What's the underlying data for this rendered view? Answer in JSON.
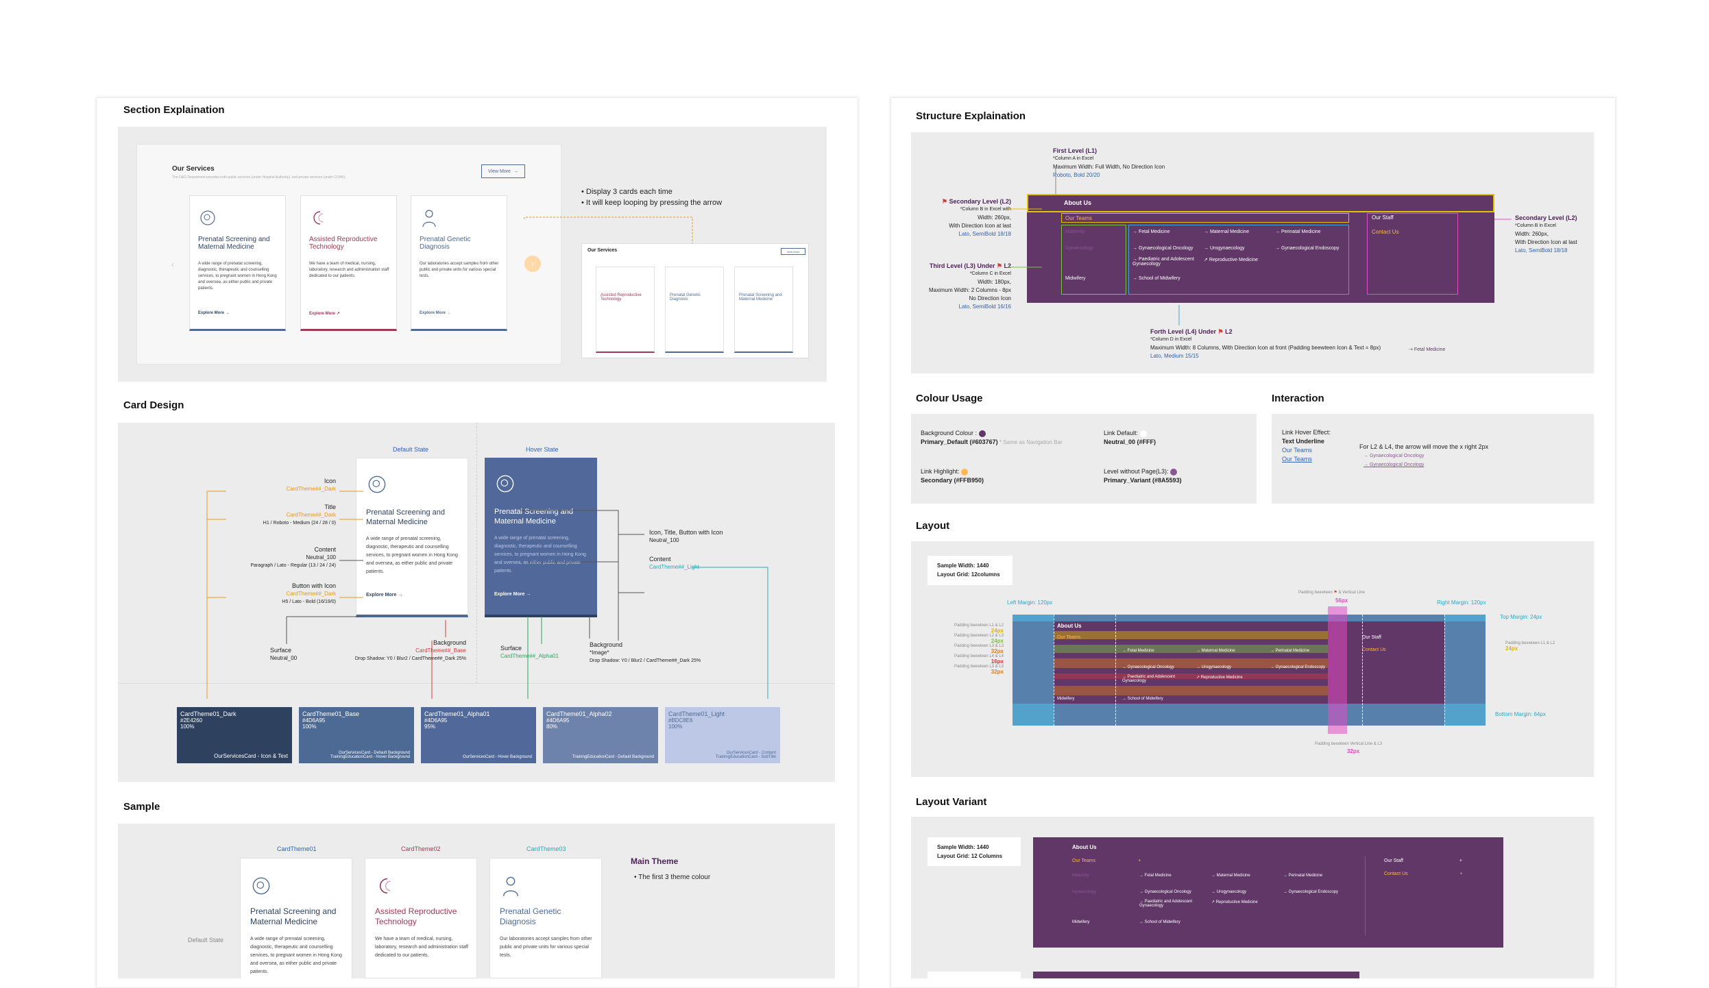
{
  "colors": {
    "primary": "#603767",
    "secondary": "#FFB950",
    "primary_variant": "#8A5593",
    "theme01_dark": "#2E4260",
    "theme01_base": "#4D6A95",
    "theme02": "#9B3A55",
    "theme03": "#4D6A95",
    "light": "#BDC8E6"
  },
  "icons": {
    "service1": "fetus-icon",
    "service2": "reproductive-icon",
    "service3": "doctor-icon",
    "arrow": "arrow-right-icon",
    "external": "external-link-icon",
    "chevron_left": "chevron-left-icon",
    "chevron_right": "chevron-right-icon",
    "flag": "flag-icon"
  },
  "left": {
    "section_explaination": {
      "title": "Section Explaination",
      "our_services": "Our Services",
      "our_services_sub": "The O&G Department provides both public services (under Hospital Authority), and private services (under CUHK).",
      "view_more": "View More",
      "notes": [
        "Display 3 cards each time",
        "It will keep looping by pressing the arrow"
      ]
    },
    "cards": [
      {
        "title": "Prenatal Screening and Maternal Medicine",
        "body": "A wide range of prenatal screening, diagnostic, therapeutic and counselling services, to pregnant women in Hong Kong and oversea, as either public and private patients.",
        "cta": "Explore More"
      },
      {
        "title": "Assisted Reproductive Technology",
        "body": "We have a team of medical, nursing, laboratory, research and administration staff dedicated to our patients.",
        "cta": "Explore More"
      },
      {
        "title": "Prenatal Genetic Diagnosis",
        "body": "Our laboratories accept samples from other public and private units for various special tests.",
        "cta": "Explore More"
      }
    ],
    "card_design": {
      "title": "Card Design",
      "default_state": "Default State",
      "hover_state": "Hover State",
      "icon_label": "Icon",
      "icon_token": "CardTheme##_Dark",
      "title_label": "Title",
      "title_token": "CardTheme##_Dark",
      "title_spec": "H1 / Roboto - Medium (24 / 28 / 0)",
      "content_label": "Content",
      "content_token": "Neutral_100",
      "content_spec": "Paragraph / Lato - Regular (13 / 24 / 24)",
      "button_label": "Button with Icon",
      "button_token": "CardTheme##_Dark",
      "button_spec": "H5 / Lato - Bold (16/19/0)",
      "surface_label": "Surface",
      "surface_token": "Neutral_00",
      "background_label": "Background",
      "background_token": "CardTheme##_Base",
      "background_spec": "Drop Shadow: Y0 / Blur2 / CardTheme##_Dark 25%",
      "hover_icon_label": "Icon, Title, Button with Icon",
      "hover_icon_token": "Neutral_100",
      "hover_content_label": "Content",
      "hover_content_token": "CardTheme##_Light",
      "hover_surface_label": "Surface",
      "hover_surface_token": "CardTheme##_Alpha01",
      "hover_background_label": "Background",
      "hover_background_token": "*Image*",
      "hover_background_spec": "Drop Shadow: Y0 / Blur2 / CardTheme##_Dark 25%",
      "swatches": [
        {
          "name": "CardTheme01_Dark",
          "hex": "#2E4260",
          "pct": "100%",
          "use": "OurServicesCard - Icon & Text",
          "color": "#2E4260"
        },
        {
          "name": "CardTheme01_Base",
          "hex": "#4D6A95",
          "pct": "100%",
          "use": "OurServicesCard - Default Background\nTrainingEducationCard - Hover Background",
          "color": "#4D6A95"
        },
        {
          "name": "CardTheme01_Alpha01",
          "hex": "#4D6A95",
          "pct": "95%",
          "use": "OurServicesCard - Hover Background",
          "color": "#51699a"
        },
        {
          "name": "CardTheme01_Alpha02",
          "hex": "#4D6A95",
          "pct": "80%",
          "use": "TrainingEducationCard - Default Background",
          "color": "#6d83ab"
        },
        {
          "name": "CardTheme01_Light",
          "hex": "#BDC8E6",
          "pct": "100%",
          "use": "OurServicesCard - Content\nTrainingEducationCard - SubTitle",
          "color": "#BDC8E6"
        }
      ]
    },
    "sample": {
      "title": "Sample",
      "themes": [
        "CardTheme01",
        "CardTheme02",
        "CardTheme03"
      ],
      "default_state": "Default State",
      "main_theme": "Main Theme",
      "main_theme_note": "The first 3 theme colour"
    }
  },
  "right": {
    "structure": {
      "title": "Structure Explaination",
      "l1_title": "First Level (L1)",
      "l1_note1": "*Column A in Excel",
      "l1_note2": "Maximum Width: Full Width, No Direction Icon",
      "l1_font": "Roboto, Bold 20/20",
      "l2_title": "Secondary Level (L2)",
      "l2_note1": "*Column B in Excel with",
      "l2_note2": "Width: 260px,",
      "l2_note3": "With Direction Icon at last",
      "l2_font": "Lato, SemiBold 18/18",
      "l3_title": "Third Level (L3) Under",
      "l3_suffix": "L2",
      "l3_note1": "*Column C in Excel",
      "l3_note2": "Width: 180px,",
      "l3_note3": "Maximum Width: 2 Columns - 8px",
      "l3_note4": "No Direction Icon",
      "l3_font": "Lato, SemiBold 16/16",
      "l4_title": "Forth Level (L4) Under",
      "l4_suffix": "L2",
      "l4_note1": "*Column D in Excel",
      "l4_note2": "Maximum Width: 8 Columns, With Direction Icon at front (Padding beewteen Icon & Text = 8px)",
      "l4_font": "Lato, Medium 15/15",
      "l4_sample": "Fetal Medicine",
      "r2_title": "Secondary Level (L2)",
      "r2_note1": "*Column B in Excel",
      "r2_note2": "Width: 260px,",
      "r2_note3": "With Direction Icon at last",
      "r2_font": "Lato, SemiBold 18/18"
    },
    "menu": {
      "about": "About Us",
      "our_teams": "Our Teams",
      "our_staff": "Our Staff",
      "contact": "Contact Us",
      "l3": [
        "Maternity",
        "Gynaecology",
        "Midwifery"
      ],
      "row1": [
        "Fetal Medicine",
        "Maternal Medicine",
        "Perinatal Medicine"
      ],
      "row2": [
        "Gynaecological Oncology",
        "Urogynaecology",
        "Gynaecological Endoscopy"
      ],
      "row3": [
        "Paediatric and Adolescent Gynaecology",
        "Reproductive Medicine"
      ],
      "row4": [
        "School of Midwifery"
      ]
    },
    "colour_usage": {
      "title": "Colour Usage",
      "bg_label": "Background Colour :",
      "bg_token": "Primary_Default (#603767)",
      "bg_note": "* Same as Navigation Bar",
      "link_default_label": "Link Default:",
      "link_default_token": "Neutral_00 (#FFF)",
      "highlight_label": "Link Highlight:",
      "highlight_token": "Secondary (#FFB950)",
      "nopage_label": "Level without Page(L3):",
      "nopage_token": "Primary_Variant (#8A5593)"
    },
    "interaction": {
      "title": "Interaction",
      "hover_label": "Link Hover Effect:",
      "underline": "Text Underline",
      "sample1": "Our Teams",
      "sample2": "Our Teams",
      "note": "For L2 & L4, the arrow will move the x right 2px",
      "item1": "Gynaecological Oncology",
      "item2": "Gynaecological Oncology"
    },
    "layout": {
      "title": "Layout",
      "sample_width": "Sample Width: 1440",
      "grid": "Layout Grid: 12columns",
      "left_margin": "Left Margin: 120px",
      "right_margin": "Right Margin: 120px",
      "top_margin": "Top Margin: 24px",
      "bottom_margin": "Bottom Margin: 64px",
      "padding_vertical": "Padding beewteen",
      "padding_vertical_suffix": "& Vertical Line",
      "padding_vertical_value": "56px",
      "padding_bottom": "Padding beewteen Vertical Line & L3",
      "padding_bottom_value": "32px",
      "pads": [
        {
          "label": "Padding beewteen L1 & L2",
          "value": "24px",
          "color": "#e3b400"
        },
        {
          "label": "Padding beewteen L2 & L3",
          "value": "24px",
          "color": "#7cc242"
        },
        {
          "label": "Padding beewteen L3 & L3",
          "value": "32px",
          "color": "#e37a1b"
        },
        {
          "label": "Padding beewteen L4 & L4",
          "value": "16px",
          "color": "#d23a3a"
        },
        {
          "label": "Padding beewteen L3 & L3",
          "value": "32px",
          "color": "#e37a1b"
        }
      ],
      "right_pad_label": "Padding beewteen L1 & L2",
      "right_pad_value": "24px"
    },
    "variant": {
      "title": "Layout Variant",
      "sample_width": "Sample Width: 1440",
      "grid": "Layout Grid: 12 Columns"
    }
  }
}
